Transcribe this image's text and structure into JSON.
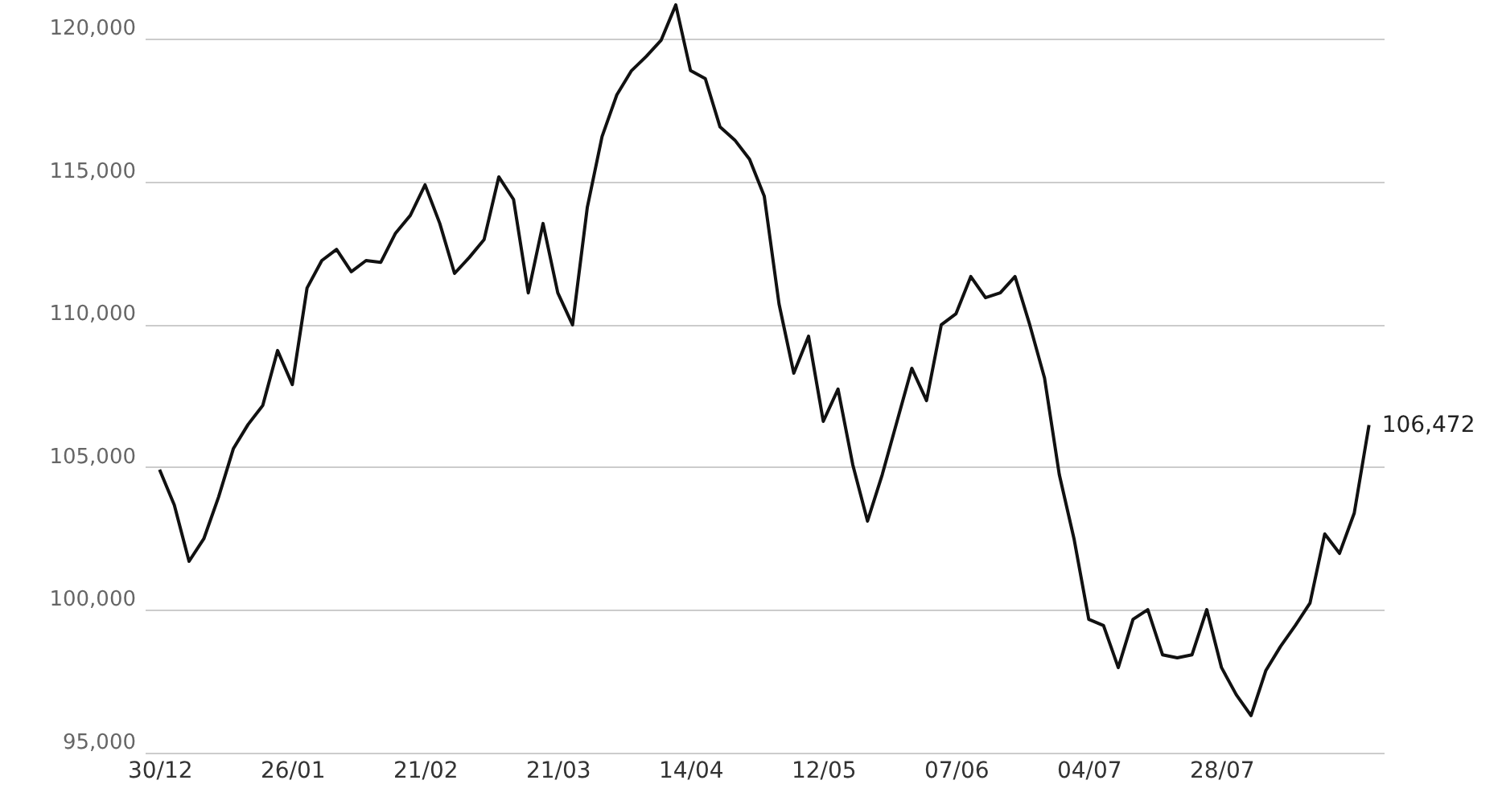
{
  "chart_data": {
    "type": "line",
    "categories": [
      "30/12",
      null,
      null,
      null,
      null,
      null,
      null,
      null,
      null,
      "26/01",
      null,
      null,
      null,
      null,
      null,
      null,
      null,
      null,
      "21/02",
      null,
      null,
      null,
      null,
      null,
      null,
      null,
      null,
      "21/03",
      null,
      null,
      null,
      null,
      null,
      null,
      null,
      null,
      "14/04",
      null,
      null,
      null,
      null,
      null,
      null,
      null,
      null,
      "12/05",
      null,
      null,
      null,
      null,
      null,
      null,
      null,
      null,
      "07/06",
      null,
      null,
      null,
      null,
      null,
      null,
      null,
      null,
      "04/07",
      null,
      null,
      null,
      null,
      null,
      null,
      null,
      null,
      "28/07",
      null,
      null,
      null,
      null,
      null,
      null,
      null,
      null,
      null,
      null
    ],
    "series": [
      {
        "color": "#111111",
        "values": [
          104910,
          103670,
          101700,
          102490,
          103950,
          105640,
          106490,
          107160,
          109080,
          107890,
          111270,
          112230,
          112620,
          111840,
          112230,
          112170,
          113190,
          113810,
          114880,
          113530,
          111780,
          112340,
          112960,
          115160,
          114370,
          111100,
          113530,
          111100,
          109980,
          114090,
          116570,
          118030,
          118880,
          119380,
          119940,
          121180,
          118880,
          118600,
          116910,
          116450,
          115780,
          114480,
          110710,
          108290,
          109580,
          106600,
          107730,
          105080,
          103110,
          104740,
          106600,
          108460,
          107330,
          109980,
          110370,
          111670,
          110930,
          111100,
          111670,
          109980,
          108120,
          104740,
          102490,
          99670,
          99450,
          97980,
          99670,
          100010,
          98430,
          98320,
          98430,
          100010,
          97980,
          97030,
          96300,
          97870,
          98720,
          99450,
          100240,
          102660,
          101980,
          103390,
          106472
        ],
        "value_labels": [
          null,
          null,
          null,
          null,
          null,
          null,
          null,
          null,
          null,
          null,
          null,
          null,
          null,
          null,
          null,
          null,
          null,
          null,
          null,
          null,
          null,
          null,
          null,
          null,
          null,
          null,
          null,
          null,
          null,
          null,
          null,
          null,
          null,
          null,
          null,
          null,
          null,
          null,
          null,
          null,
          null,
          null,
          null,
          null,
          null,
          null,
          null,
          null,
          null,
          null,
          null,
          null,
          null,
          null,
          null,
          null,
          null,
          null,
          null,
          null,
          null,
          null,
          null,
          null,
          null,
          null,
          null,
          null,
          null,
          null,
          null,
          null,
          null,
          null,
          null,
          null,
          null,
          null,
          null,
          null,
          null,
          null,
          "106,472"
        ]
      }
    ],
    "ylim": [
      95000,
      121240
    ],
    "yticks": [
      {
        "value": 95000,
        "label": "95,000"
      },
      {
        "value": 100000,
        "label": "100,000"
      },
      {
        "value": 105000,
        "label": "105,000"
      },
      {
        "value": 110000,
        "label": "110,000"
      },
      {
        "value": 115000,
        "label": "115,000"
      },
      {
        "value": 120000,
        "label": "120,000"
      }
    ],
    "grid": "y",
    "marker": "none",
    "line_style": "solid"
  }
}
